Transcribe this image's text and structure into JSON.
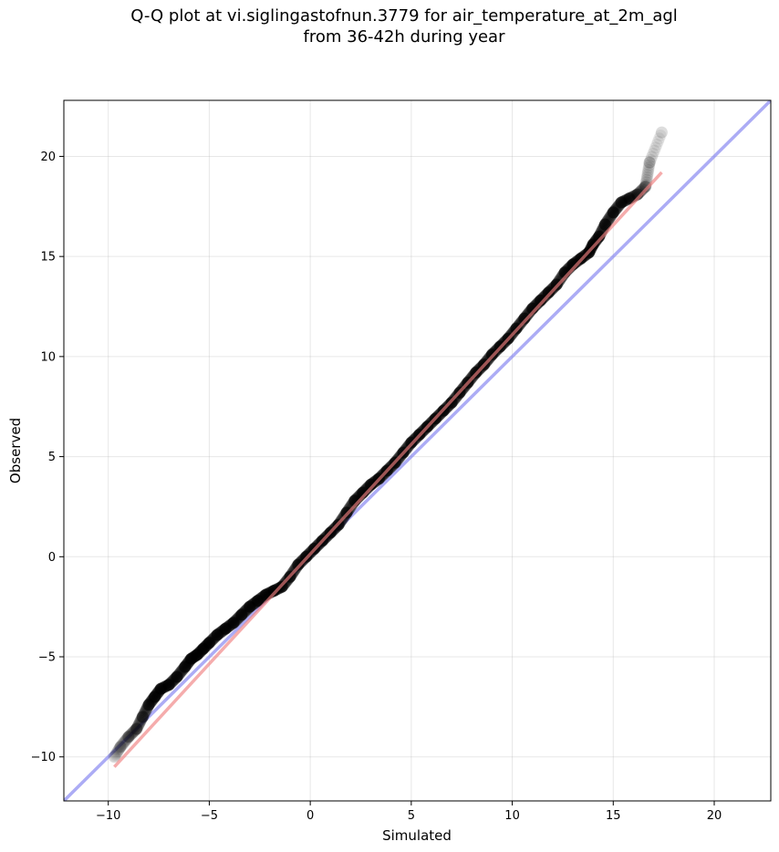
{
  "chart_data": {
    "type": "scatter",
    "title_line1": "Q-Q plot at vi.siglingastofnun.3779 for air_temperature_at_2m_agl",
    "title_line2": "from 36-42h during year",
    "xlabel": "Simulated",
    "ylabel": "Observed",
    "xlim": [
      -12.2,
      22.8
    ],
    "ylim": [
      -12.2,
      22.8
    ],
    "xticks": [
      -10,
      -5,
      0,
      5,
      10,
      15,
      20
    ],
    "yticks": [
      -10,
      -5,
      0,
      5,
      10,
      15,
      20
    ],
    "xtick_labels": [
      "−10",
      "−5",
      "0",
      "5",
      "10",
      "15",
      "20"
    ],
    "ytick_labels": [
      "−10",
      "−5",
      "0",
      "5",
      "10",
      "15",
      "20"
    ],
    "grid": true,
    "series": [
      {
        "kind": "quantiles",
        "color": "#000000",
        "x": [
          -9.7,
          -9.4,
          -9.0,
          -8.6,
          -8.3,
          -8.0,
          -7.7,
          -7.4,
          -7.0,
          -6.6,
          -6.2,
          -5.9,
          -5.6,
          -5.3,
          -5.0,
          -4.6,
          -4.2,
          -3.8,
          -3.4,
          -3.0,
          -2.6,
          -2.2,
          -1.8,
          -1.4,
          -1.0,
          -0.6,
          -0.2,
          0.2,
          0.6,
          1.0,
          1.4,
          1.8,
          2.2,
          2.6,
          3.0,
          3.4,
          3.8,
          4.2,
          4.6,
          5.0,
          5.4,
          5.8,
          6.2,
          6.6,
          7.0,
          7.4,
          7.8,
          8.2,
          8.6,
          9.0,
          9.4,
          9.8,
          10.2,
          10.6,
          11.0,
          11.4,
          11.8,
          12.2,
          12.6,
          13.0,
          13.4,
          13.8,
          14.0,
          14.3,
          14.6,
          15.0,
          15.4,
          15.8,
          16.2,
          16.6,
          16.8,
          17.4
        ],
        "y": [
          -10.0,
          -9.5,
          -9.0,
          -8.6,
          -8.0,
          -7.4,
          -7.0,
          -6.6,
          -6.4,
          -6.0,
          -5.5,
          -5.1,
          -4.9,
          -4.6,
          -4.3,
          -3.9,
          -3.6,
          -3.3,
          -2.9,
          -2.5,
          -2.2,
          -1.9,
          -1.7,
          -1.5,
          -1.0,
          -0.4,
          0.0,
          0.4,
          0.8,
          1.2,
          1.6,
          2.2,
          2.8,
          3.2,
          3.6,
          3.9,
          4.3,
          4.7,
          5.2,
          5.7,
          6.1,
          6.5,
          6.9,
          7.3,
          7.7,
          8.2,
          8.7,
          9.2,
          9.6,
          10.1,
          10.5,
          10.9,
          11.4,
          11.9,
          12.4,
          12.8,
          13.2,
          13.6,
          14.2,
          14.6,
          14.9,
          15.2,
          15.6,
          16.0,
          16.6,
          17.2,
          17.7,
          17.9,
          18.1,
          18.5,
          19.7,
          21.2
        ]
      },
      {
        "kind": "fit-line",
        "color": "#f08080",
        "x": [
          -9.7,
          17.4
        ],
        "y": [
          -10.5,
          19.2
        ]
      },
      {
        "kind": "identity-line",
        "color": "#8080f0",
        "x": [
          -12.2,
          22.8
        ],
        "y": [
          -12.2,
          22.8
        ]
      }
    ]
  }
}
